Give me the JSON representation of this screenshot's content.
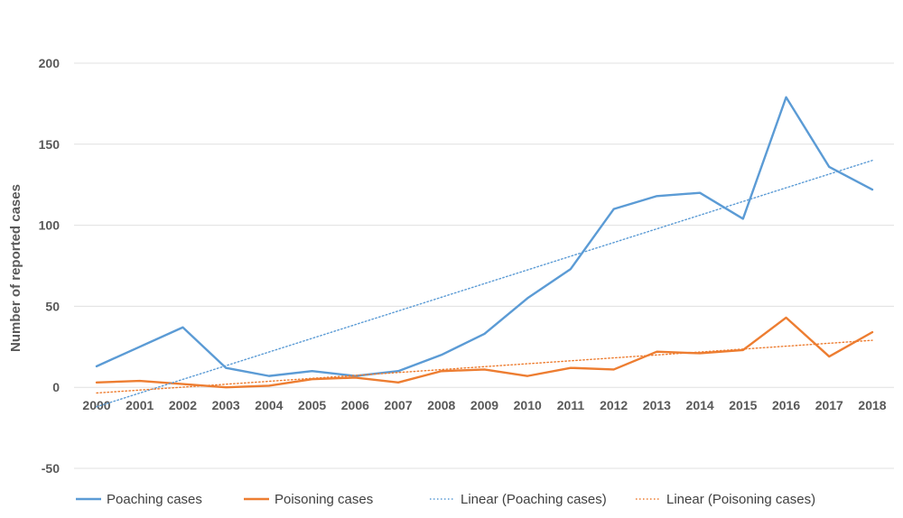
{
  "chart_data": {
    "type": "line",
    "title": "",
    "xlabel": "",
    "ylabel": "Number of reported cases",
    "ylim": [
      -50,
      200
    ],
    "yticks": [
      -50,
      0,
      50,
      100,
      150,
      200
    ],
    "grid": true,
    "legend_position": "bottom",
    "x": [
      "2000",
      "2001",
      "2002",
      "2003",
      "2004",
      "2005",
      "2006",
      "2007",
      "2008",
      "2009",
      "2010",
      "2011",
      "2012",
      "2013",
      "2014",
      "2015",
      "2016",
      "2017",
      "2018"
    ],
    "series": [
      {
        "name": "Poaching cases",
        "color": "#5b9bd5",
        "style": "solid",
        "values": [
          13,
          25,
          37,
          12,
          7,
          10,
          7,
          10,
          20,
          33,
          55,
          73,
          110,
          118,
          120,
          104,
          179,
          136,
          122
        ]
      },
      {
        "name": "Poisoning cases",
        "color": "#ed7d31",
        "style": "solid",
        "values": [
          3,
          4,
          2,
          0,
          1,
          5,
          6,
          3,
          10,
          11,
          7,
          12,
          11,
          22,
          21,
          23,
          43,
          19,
          34
        ]
      },
      {
        "name": "Linear (Poaching cases)",
        "color": "#5b9bd5",
        "style": "dotted",
        "trend_of": "Poaching cases",
        "endpoints": [
          -12,
          140
        ]
      },
      {
        "name": "Linear (Poisoning cases)",
        "color": "#ed7d31",
        "style": "dotted",
        "trend_of": "Poisoning cases",
        "endpoints": [
          -3.5,
          29
        ]
      }
    ]
  }
}
